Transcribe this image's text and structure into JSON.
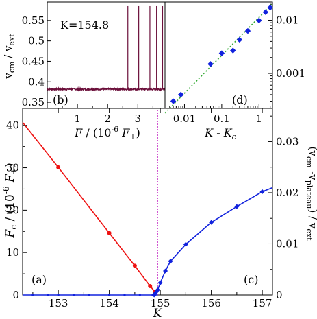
{
  "colors": {
    "red": "#ee1111",
    "blue": "#1122dd",
    "green": "#33aa33",
    "magenta": "#cc44cc",
    "dark_red": "#6b0f3a",
    "black": "#000000"
  },
  "chart_data": [
    {
      "id": "a",
      "type": "line",
      "panel_label": "(a)",
      "xlabel": "K",
      "ylabel": "F_c / (10^-6 F_+)",
      "xlim": [
        152.3,
        157.2
      ],
      "ylim": [
        0,
        44
      ],
      "x_ticks": [
        153,
        154,
        155,
        156,
        157
      ],
      "y_ticks": [
        0,
        10,
        20,
        30,
        40
      ],
      "series": [
        {
          "color": "#ee1111",
          "x": [
            152.3,
            153.0,
            154.0,
            154.5,
            154.8,
            154.9
          ],
          "y": [
            40.7,
            30.1,
            14.6,
            6.9,
            2.1,
            0.7
          ]
        },
        {
          "color": "#1122dd",
          "x": [
            152.3,
            154.95
          ],
          "y": [
            0,
            0
          ]
        }
      ]
    },
    {
      "id": "c",
      "type": "line",
      "panel_label": "(c)",
      "ylabel": "(v_cm -v_plateau) / v_ext",
      "xlim": [
        152.3,
        157.2
      ],
      "ylim": [
        0,
        0.0365
      ],
      "y_ticks": [
        0,
        0.01,
        0.02,
        0.03
      ],
      "series": [
        {
          "color": "#1122dd",
          "x": [
            154.88,
            154.9,
            154.92,
            154.95,
            155.0,
            155.1,
            155.2,
            155.5,
            156.0,
            156.5,
            157.0,
            157.2
          ],
          "y": [
            0.0,
            0.0003,
            0.0006,
            0.001,
            0.0024,
            0.0047,
            0.0066,
            0.0099,
            0.0142,
            0.0173,
            0.0202,
            0.021
          ]
        }
      ]
    },
    {
      "id": "b",
      "type": "line",
      "panel_label": "(b)",
      "annotation": "K=154.8",
      "xlabel": "F / (10^-6 F_+)",
      "ylabel": "v_cm / v_ext",
      "xlim": [
        0,
        3.9
      ],
      "ylim": [
        0.335,
        0.595
      ],
      "x_ticks": [
        1,
        2,
        3
      ],
      "y_ticks": [
        0.35,
        0.4,
        0.45,
        0.5,
        0.55
      ],
      "baseline": 0.382,
      "spikes": [
        2.67,
        3.03,
        3.4,
        3.62,
        3.82
      ],
      "spike_peak": 0.585
    },
    {
      "id": "d",
      "type": "scatter",
      "panel_label": "(d)",
      "scale": "log-log",
      "xlabel": "K - K_c",
      "xlim": [
        0.003,
        2.3
      ],
      "ylim": [
        0.00022,
        0.022
      ],
      "x_ticks": [
        0.01,
        0.1,
        1
      ],
      "y_ticks": [
        0.001,
        0.01
      ],
      "points": {
        "color": "#1122dd",
        "x": [
          0.005,
          0.008,
          0.05,
          0.1,
          0.2,
          0.3,
          0.5,
          1.0,
          1.5,
          2.0
        ],
        "y": [
          0.0003,
          0.0004,
          0.0015,
          0.0024,
          0.0027,
          0.0043,
          0.0063,
          0.0099,
          0.0142,
          0.0173
        ]
      },
      "fit": {
        "color": "#33aa33",
        "x": [
          0.003,
          2.3
        ],
        "y": [
          0.00018,
          0.0205
        ]
      }
    }
  ]
}
